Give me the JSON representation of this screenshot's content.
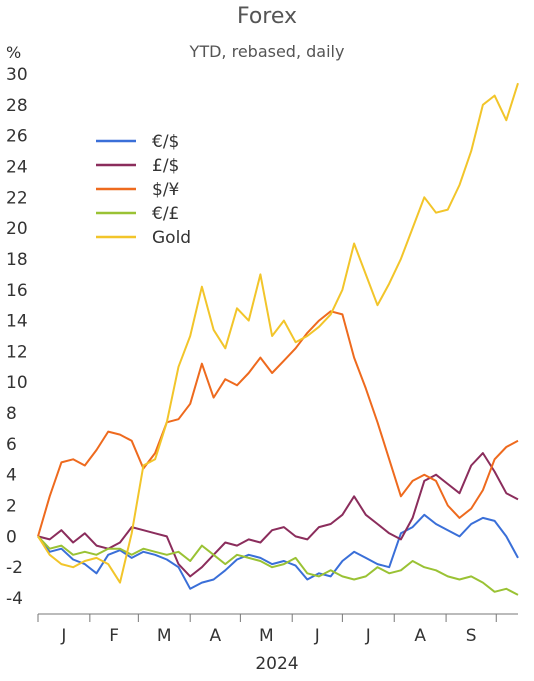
{
  "chart_data": {
    "type": "line",
    "title": "Forex",
    "subtitle": "YTD, rebased, daily",
    "y_unit": "%",
    "xlabel": "2024",
    "ylim": [
      -4,
      30
    ],
    "yticks": [
      30,
      28,
      26,
      24,
      22,
      20,
      18,
      16,
      14,
      12,
      10,
      8,
      6,
      4,
      2,
      0,
      -2,
      -4
    ],
    "x_month_labels": [
      "J",
      "F",
      "M",
      "A",
      "M",
      "J",
      "J",
      "A",
      "S"
    ],
    "x": [
      "2024-01-01",
      "2024-01-08",
      "2024-01-15",
      "2024-01-22",
      "2024-01-29",
      "2024-02-05",
      "2024-02-12",
      "2024-02-19",
      "2024-02-26",
      "2024-03-04",
      "2024-03-11",
      "2024-03-18",
      "2024-03-25",
      "2024-04-01",
      "2024-04-08",
      "2024-04-15",
      "2024-04-22",
      "2024-04-29",
      "2024-05-06",
      "2024-05-13",
      "2024-05-20",
      "2024-05-27",
      "2024-06-03",
      "2024-06-10",
      "2024-06-17",
      "2024-06-24",
      "2024-07-01",
      "2024-07-08",
      "2024-07-15",
      "2024-07-22",
      "2024-07-29",
      "2024-08-05",
      "2024-08-12",
      "2024-08-19",
      "2024-08-26",
      "2024-09-02",
      "2024-09-09",
      "2024-09-16",
      "2024-09-23",
      "2024-09-30",
      "2024-10-07",
      "2024-10-14"
    ],
    "grid": false,
    "legend_position": "top-left",
    "series": [
      {
        "name": "€/$",
        "color": "#3a6fd8",
        "values": [
          0.0,
          -1.0,
          -0.8,
          -1.5,
          -1.8,
          -2.4,
          -1.2,
          -0.9,
          -1.4,
          -1.0,
          -1.2,
          -1.5,
          -2.0,
          -3.4,
          -3.0,
          -2.8,
          -2.2,
          -1.5,
          -1.2,
          -1.4,
          -1.8,
          -1.6,
          -1.9,
          -2.8,
          -2.4,
          -2.6,
          -1.6,
          -1.0,
          -1.4,
          -1.8,
          -2.0,
          0.2,
          0.6,
          1.4,
          0.8,
          0.4,
          0.0,
          0.8,
          1.2,
          1.0,
          0.0,
          -1.4
        ]
      },
      {
        "name": "£/$",
        "color": "#8b2d5c",
        "values": [
          0.0,
          -0.2,
          0.4,
          -0.4,
          0.2,
          -0.6,
          -0.8,
          -0.4,
          0.6,
          0.4,
          0.2,
          0.0,
          -1.8,
          -2.6,
          -2.0,
          -1.2,
          -0.4,
          -0.6,
          -0.2,
          -0.4,
          0.4,
          0.6,
          0.0,
          -0.2,
          0.6,
          0.8,
          1.4,
          2.6,
          1.4,
          0.8,
          0.2,
          -0.2,
          1.2,
          3.6,
          4.0,
          3.4,
          2.8,
          4.6,
          5.4,
          4.2,
          2.8,
          2.4
        ]
      },
      {
        "name": "$/¥",
        "color": "#ee6a1e",
        "values": [
          0.0,
          2.6,
          4.8,
          5.0,
          4.6,
          5.6,
          6.8,
          6.6,
          6.2,
          4.4,
          5.4,
          7.4,
          7.6,
          8.6,
          11.2,
          9.0,
          10.2,
          9.8,
          10.6,
          11.6,
          10.6,
          11.4,
          12.2,
          13.2,
          14.0,
          14.6,
          14.4,
          11.6,
          9.6,
          7.4,
          5.0,
          2.6,
          3.6,
          4.0,
          3.6,
          2.0,
          1.2,
          1.8,
          3.0,
          5.0,
          5.8,
          6.2
        ]
      },
      {
        "name": "€/£",
        "color": "#9ac234",
        "values": [
          0.0,
          -0.8,
          -0.6,
          -1.2,
          -1.0,
          -1.2,
          -0.8,
          -0.8,
          -1.2,
          -0.8,
          -1.0,
          -1.2,
          -1.0,
          -1.6,
          -0.6,
          -1.2,
          -1.8,
          -1.2,
          -1.4,
          -1.6,
          -2.0,
          -1.8,
          -1.4,
          -2.4,
          -2.6,
          -2.2,
          -2.6,
          -2.8,
          -2.6,
          -2.0,
          -2.4,
          -2.2,
          -1.6,
          -2.0,
          -2.2,
          -2.6,
          -2.8,
          -2.6,
          -3.0,
          -3.6,
          -3.4,
          -3.8
        ]
      },
      {
        "name": "Gold",
        "color": "#f2c52a",
        "values": [
          0.0,
          -1.2,
          -1.8,
          -2.0,
          -1.6,
          -1.4,
          -1.8,
          -3.0,
          0.2,
          4.6,
          5.0,
          7.4,
          11.0,
          13.0,
          16.2,
          13.4,
          12.2,
          14.8,
          14.0,
          17.0,
          13.0,
          14.0,
          12.6,
          13.0,
          13.6,
          14.4,
          16.0,
          19.0,
          17.0,
          15.0,
          16.4,
          18.0,
          20.0,
          22.0,
          21.0,
          21.2,
          22.8,
          25.0,
          28.0,
          28.6,
          27.0,
          29.4
        ]
      }
    ]
  }
}
